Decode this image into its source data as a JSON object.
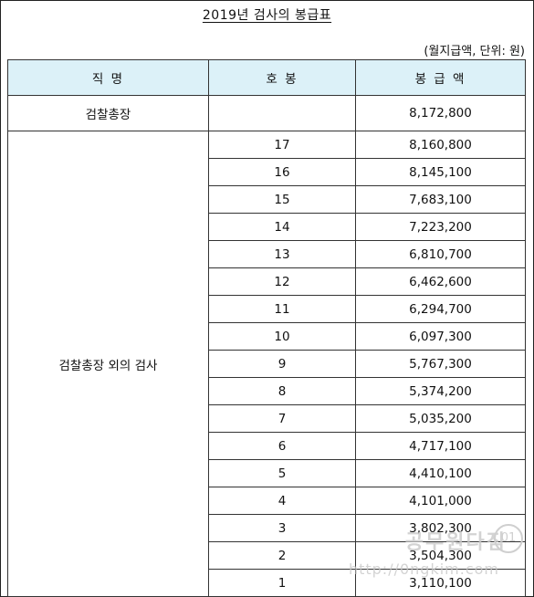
{
  "title": "2019년 검사의 봉급표",
  "unit_note": "(월지급액, 단위: 원)",
  "headers": [
    "직      명",
    "호      봉",
    "봉 급 액"
  ],
  "top_row": {
    "position": "검찰총장",
    "step": "",
    "salary": "8,172,800"
  },
  "group_position": "검찰총장 외의 검사",
  "rows": [
    {
      "step": "17",
      "salary": "8,160,800"
    },
    {
      "step": "16",
      "salary": "8,145,100"
    },
    {
      "step": "15",
      "salary": "7,683,100"
    },
    {
      "step": "14",
      "salary": "7,223,200"
    },
    {
      "step": "13",
      "salary": "6,810,700"
    },
    {
      "step": "12",
      "salary": "6,462,600"
    },
    {
      "step": "11",
      "salary": "6,294,700"
    },
    {
      "step": "10",
      "salary": "6,097,300"
    },
    {
      "step": "9",
      "salary": "5,767,300"
    },
    {
      "step": "8",
      "salary": "5,374,200"
    },
    {
      "step": "7",
      "salary": "5,035,200"
    },
    {
      "step": "6",
      "salary": "4,717,100"
    },
    {
      "step": "5",
      "salary": "4,410,100"
    },
    {
      "step": "4",
      "salary": "4,101,000"
    },
    {
      "step": "3",
      "salary": "3,802,300"
    },
    {
      "step": "2",
      "salary": "3,504,300"
    },
    {
      "step": "1",
      "salary": "3,110,100"
    }
  ],
  "watermark": {
    "line1": "공무원다짐",
    "line2": "http://0ngkim.com",
    "badge": "01"
  },
  "colors": {
    "header_bg": "#dcf1f8",
    "border": "#333333"
  }
}
